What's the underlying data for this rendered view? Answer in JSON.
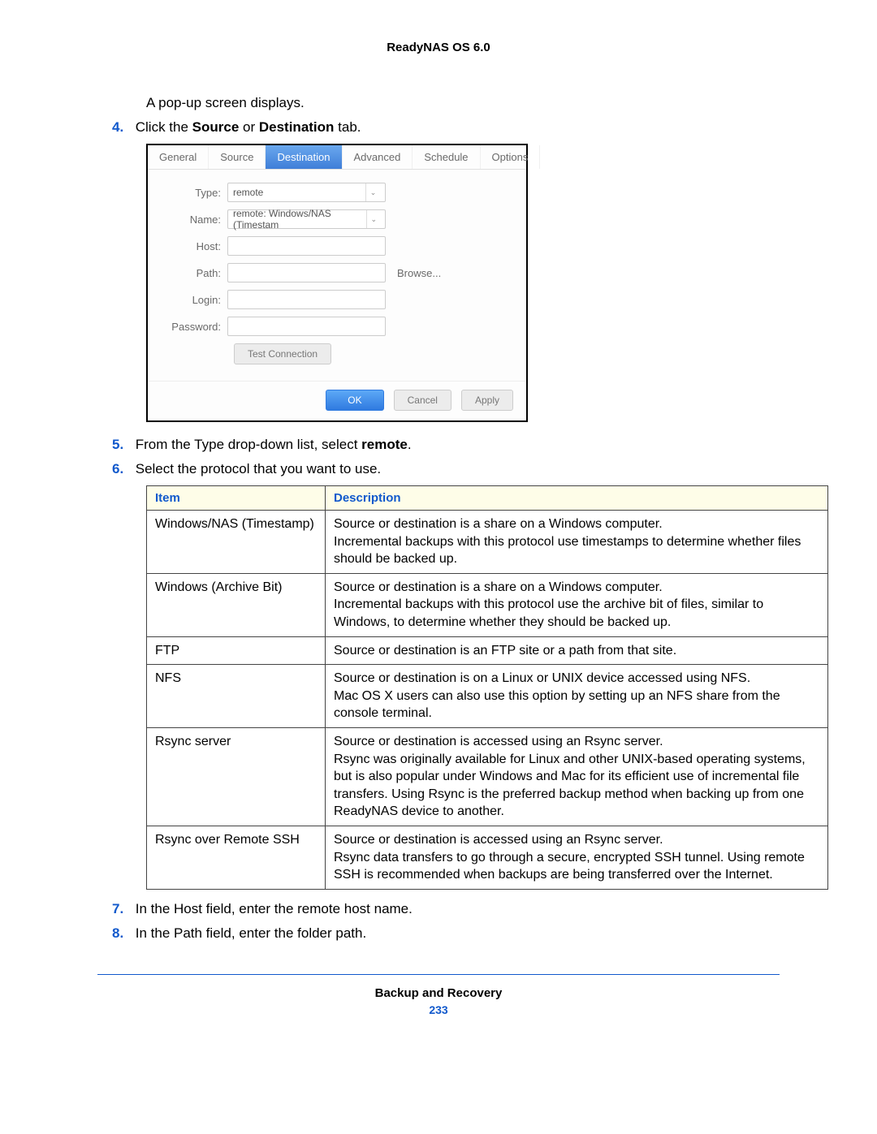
{
  "header": {
    "title": "ReadyNAS OS 6.0"
  },
  "intro": "A pop-up screen displays.",
  "steps": {
    "s4": {
      "num": "4.",
      "prefix": "Click the ",
      "bold1": "Source",
      "mid": " or ",
      "bold2": "Destination",
      "suffix": " tab."
    },
    "s5": {
      "num": "5.",
      "prefix": "From the Type drop-down list, select ",
      "bold": "remote",
      "suffix": "."
    },
    "s6": {
      "num": "6.",
      "text": "Select the protocol that you want to use."
    },
    "s7": {
      "num": "7.",
      "text": "In the Host field, enter the remote host name."
    },
    "s8": {
      "num": "8.",
      "text": "In the Path field, enter the folder path."
    }
  },
  "dialog": {
    "tabs": [
      "General",
      "Source",
      "Destination",
      "Advanced",
      "Schedule",
      "Options"
    ],
    "active_tab_index": 2,
    "labels": {
      "type": "Type:",
      "name": "Name:",
      "host": "Host:",
      "path": "Path:",
      "login": "Login:",
      "password": "Password:"
    },
    "values": {
      "type": "remote",
      "name": "remote: Windows/NAS (Timestam"
    },
    "browse": "Browse...",
    "test_conn": "Test Connection",
    "buttons": {
      "ok": "OK",
      "cancel": "Cancel",
      "apply": "Apply"
    },
    "colors": {
      "tab_active_bg_top": "#6aa8ee",
      "tab_active_bg_bottom": "#3f7ed8",
      "ok_bg_top": "#5da9f6",
      "ok_bg_bottom": "#2f7ae0"
    }
  },
  "table": {
    "headers": {
      "item": "Item",
      "desc": "Description"
    },
    "header_bg": "#fefde8",
    "header_color": "#1159cc",
    "border_color": "#444444",
    "rows": [
      {
        "item": "Windows/NAS (Timestamp)",
        "desc": "Source or destination is a share on a Windows computer.\nIncremental backups with this protocol use timestamps to determine whether files should be backed up."
      },
      {
        "item": "Windows (Archive Bit)",
        "desc": "Source or destination is a share on a Windows computer.\nIncremental backups with this protocol use the archive bit of files, similar to Windows, to determine whether they should be backed up."
      },
      {
        "item": "FTP",
        "desc": "Source or destination is an FTP site or a path from that site."
      },
      {
        "item": "NFS",
        "desc": "Source or destination is on a Linux or UNIX device accessed using NFS.\nMac OS X users can also use this option by setting up an NFS share from the console terminal."
      },
      {
        "item": "Rsync server",
        "desc": "Source or destination is accessed using an Rsync server.\nRsync was originally available for Linux and other UNIX-based operating systems, but is also popular under Windows and Mac for its efficient use of incremental file transfers. Using Rsync is the preferred backup method when backing up from one ReadyNAS device to another."
      },
      {
        "item": "Rsync over Remote SSH",
        "desc": "Source or destination is accessed using an Rsync server.\nRsync data transfers to go through a secure, encrypted SSH tunnel. Using remote SSH is recommended when backups are being transferred over the Internet."
      }
    ]
  },
  "footer": {
    "section": "Backup and Recovery",
    "page": "233",
    "divider_color": "#1159cc"
  }
}
